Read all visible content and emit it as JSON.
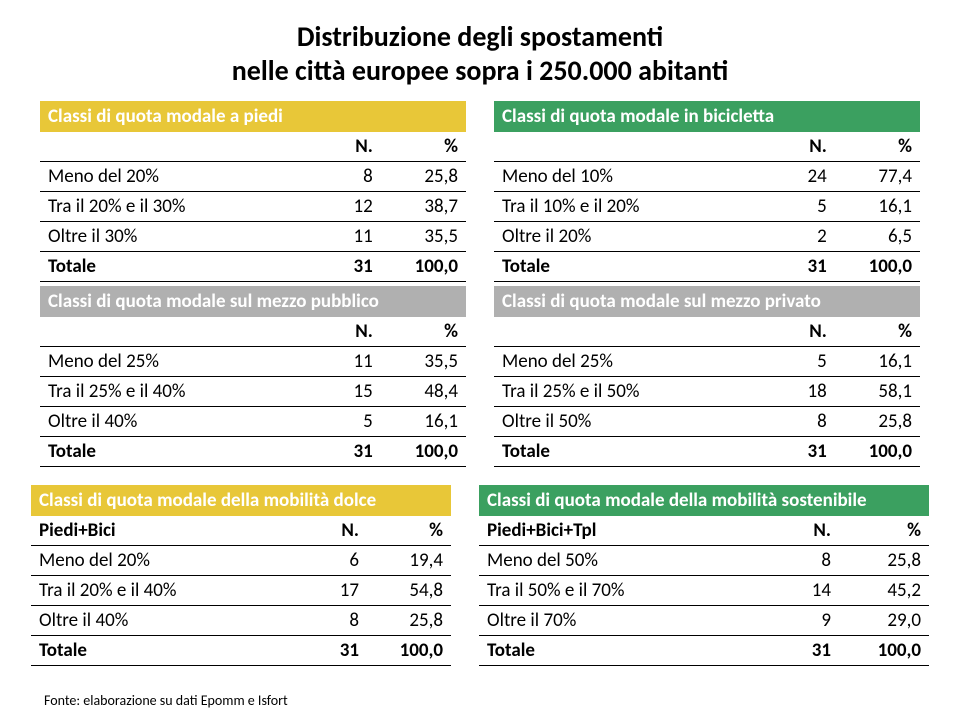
{
  "title_line1": "Distribuzione degli spostamenti",
  "title_line2": "nelle città europee sopra i 250.000 abitanti",
  "colors": {
    "hdr_piedi": "#e8c738",
    "hdr_bici": "#3ba060",
    "hdr_pubblico": "#b0b0b0",
    "hdr_privato": "#b0b0b0",
    "hdr_dolce": "#e8c738",
    "hdr_sost": "#3ba060",
    "border": "#000000"
  },
  "header_cols": {
    "n": "N.",
    "pct": "%"
  },
  "piedi": {
    "title": "Classi di quota modale a piedi",
    "rows": [
      {
        "l": "Meno del 20%",
        "n": "8",
        "p": "25,8"
      },
      {
        "l": "Tra il 20% e il 30%",
        "n": "12",
        "p": "38,7"
      },
      {
        "l": "Oltre il 30%",
        "n": "11",
        "p": "35,5"
      },
      {
        "l": "Totale",
        "n": "31",
        "p": "100,0",
        "total": true
      }
    ]
  },
  "bici": {
    "title": "Classi di quota modale in bicicletta",
    "rows": [
      {
        "l": "Meno del 10%",
        "n": "24",
        "p": "77,4"
      },
      {
        "l": "Tra il 10% e il 20%",
        "n": "5",
        "p": "16,1"
      },
      {
        "l": "Oltre il 20%",
        "n": "2",
        "p": "6,5"
      },
      {
        "l": "Totale",
        "n": "31",
        "p": "100,0",
        "total": true
      }
    ]
  },
  "pubblico": {
    "title": "Classi di quota modale sul mezzo pubblico",
    "rows": [
      {
        "l": "Meno del 25%",
        "n": "11",
        "p": "35,5"
      },
      {
        "l": "Tra il 25% e il 40%",
        "n": "15",
        "p": "48,4"
      },
      {
        "l": "Oltre il 40%",
        "n": "5",
        "p": "16,1"
      },
      {
        "l": "Totale",
        "n": "31",
        "p": "100,0",
        "total": true
      }
    ]
  },
  "privato": {
    "title": "Classi di quota modale sul mezzo privato",
    "rows": [
      {
        "l": "Meno del 25%",
        "n": "5",
        "p": "16,1"
      },
      {
        "l": "Tra il 25% e il 50%",
        "n": "18",
        "p": "58,1"
      },
      {
        "l": "Oltre il 50%",
        "n": "8",
        "p": "25,8"
      },
      {
        "l": "Totale",
        "n": "31",
        "p": "100,0",
        "total": true
      }
    ]
  },
  "dolce": {
    "title": "Classi di quota modale della mobilità dolce",
    "subhead_col1": "Piedi+Bici",
    "rows": [
      {
        "l": "Meno del 20%",
        "n": "6",
        "p": "19,4"
      },
      {
        "l": "Tra il 20% e il 40%",
        "n": "17",
        "p": "54,8"
      },
      {
        "l": "Oltre il 40%",
        "n": "8",
        "p": "25,8"
      },
      {
        "l": "Totale",
        "n": "31",
        "p": "100,0",
        "total": true
      }
    ]
  },
  "sost": {
    "title": "Classi di quota modale della mobilità sostenibile",
    "subhead_col1": "Piedi+Bici+Tpl",
    "rows": [
      {
        "l": "Meno del 50%",
        "n": "8",
        "p": "25,8"
      },
      {
        "l": "Tra il 50% e il 70%",
        "n": "14",
        "p": "45,2"
      },
      {
        "l": "Oltre il 70%",
        "n": "9",
        "p": "29,0"
      },
      {
        "l": "Totale",
        "n": "31",
        "p": "100,0",
        "total": true
      }
    ]
  },
  "footer": "Fonte: elaborazione su dati Epomm e Isfort"
}
